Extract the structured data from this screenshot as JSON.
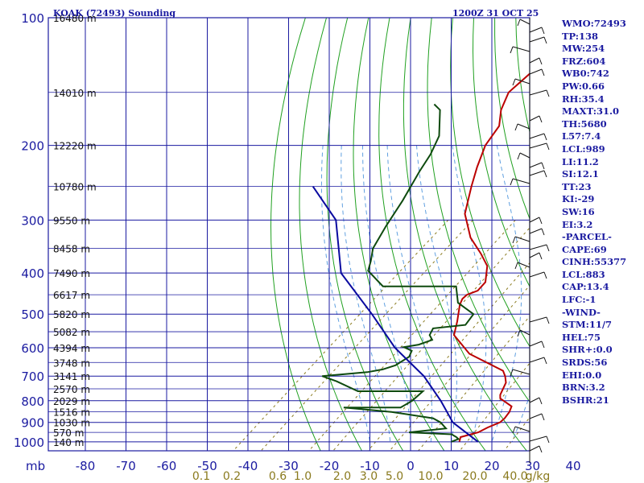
{
  "header": {
    "station": "KOAK (72493) Sounding",
    "time": "1200Z 31 OCT 25"
  },
  "chart_data": {
    "type": "line",
    "title": "KOAK (72493) Sounding",
    "subtitle": "1200Z 31 OCT 25",
    "xunit_label": "mb",
    "temperature_ticks": [
      "-80",
      "-70",
      "-60",
      "-50",
      "-40",
      "-30",
      "-20",
      "-10",
      "0",
      "10",
      "20",
      "30",
      "40"
    ],
    "pressure_ticks": [
      "100",
      "200",
      "300",
      "400",
      "500",
      "600",
      "700",
      "800",
      "900",
      "1000"
    ],
    "height_labels": [
      {
        "p": 100,
        "text": "16480 m"
      },
      {
        "p": 150,
        "text": "14010 m"
      },
      {
        "p": 200,
        "text": "12220 m"
      },
      {
        "p": 250,
        "text": "10780 m"
      },
      {
        "p": 300,
        "text": "9550 m"
      },
      {
        "p": 350,
        "text": "8458 m"
      },
      {
        "p": 400,
        "text": "7490 m"
      },
      {
        "p": 450,
        "text": "6617 m"
      },
      {
        "p": 500,
        "text": "5820 m"
      },
      {
        "p": 550,
        "text": "5082 m"
      },
      {
        "p": 600,
        "text": "4394 m"
      },
      {
        "p": 650,
        "text": "3748 m"
      },
      {
        "p": 700,
        "text": "3141 m"
      },
      {
        "p": 750,
        "text": "2570 m"
      },
      {
        "p": 800,
        "text": "2029 m"
      },
      {
        "p": 850,
        "text": "1516 m"
      },
      {
        "p": 900,
        "text": "1030 m"
      },
      {
        "p": 950,
        "text": "570 m"
      },
      {
        "p": 1000,
        "text": "140 m"
      }
    ],
    "mixing_ratio_labels": [
      "0.1",
      "0.2",
      "0.6",
      "1.0",
      "2.0",
      "3.0",
      "5.0",
      "10.0",
      "20.0",
      "40.0",
      "g/kg"
    ],
    "series": [
      {
        "name": "Temperature",
        "color": "#bb0000",
        "points": [
          [
            12,
            1000
          ],
          [
            11,
            975
          ],
          [
            14,
            950
          ],
          [
            15,
            925
          ],
          [
            16.6,
            900
          ],
          [
            16.6,
            880
          ],
          [
            16,
            850
          ],
          [
            15,
            825
          ],
          [
            10,
            790
          ],
          [
            9,
            775
          ],
          [
            7,
            725
          ],
          [
            5,
            700
          ],
          [
            3,
            680
          ],
          [
            -10,
            620
          ],
          [
            -19,
            560
          ],
          [
            -22,
            520
          ],
          [
            -26,
            475
          ],
          [
            -27,
            460
          ],
          [
            -27,
            450
          ],
          [
            -25.5,
            440
          ],
          [
            -26,
            420
          ],
          [
            -30,
            385
          ],
          [
            -35,
            360
          ],
          [
            -42,
            330
          ],
          [
            -50,
            290
          ],
          [
            -56,
            250
          ],
          [
            -60,
            225
          ],
          [
            -64,
            200
          ],
          [
            -66,
            180
          ],
          [
            -70,
            165
          ],
          [
            -73,
            150
          ],
          [
            -73,
            100
          ]
        ]
      },
      {
        "name": "Dewpoint",
        "color": "#0e4a0e",
        "points": [
          [
            10,
            1000
          ],
          [
            11,
            985
          ],
          [
            10,
            975
          ],
          [
            8,
            960
          ],
          [
            -3,
            950
          ],
          [
            5,
            930
          ],
          [
            2,
            900
          ],
          [
            -1,
            880
          ],
          [
            -13,
            850
          ],
          [
            -26,
            830
          ],
          [
            -12,
            830
          ],
          [
            -11,
            800
          ],
          [
            -11,
            760
          ],
          [
            -27,
            760
          ],
          [
            -35,
            720
          ],
          [
            -40,
            700
          ],
          [
            -30,
            685
          ],
          [
            -27,
            675
          ],
          [
            -25,
            660
          ],
          [
            -24,
            630
          ],
          [
            -25,
            610
          ],
          [
            -28,
            598
          ],
          [
            -25,
            590
          ],
          [
            -23,
            575
          ],
          [
            -25,
            560
          ],
          [
            -26,
            540
          ],
          [
            -19,
            530
          ],
          [
            -20,
            500
          ],
          [
            -27,
            470
          ],
          [
            -32,
            430
          ],
          [
            -50,
            430
          ],
          [
            -58,
            395
          ],
          [
            -60,
            375
          ],
          [
            -63,
            350
          ],
          [
            -66,
            310
          ],
          [
            -69,
            270
          ],
          [
            -73,
            230
          ],
          [
            -75,
            210
          ],
          [
            -78,
            190
          ],
          [
            -85,
            165
          ],
          [
            -88,
            160
          ]
        ]
      },
      {
        "name": "Parcel",
        "color": "#0a0aa0",
        "points": [
          [
            16.6,
            1000
          ],
          [
            5,
            900
          ],
          [
            -4,
            800
          ],
          [
            -15,
            700
          ],
          [
            -30,
            600
          ],
          [
            -45,
            500
          ],
          [
            -64,
            400
          ],
          [
            -80,
            300
          ],
          [
            -95,
            250
          ]
        ]
      }
    ],
    "indices": [
      "WMO:72493",
      "TP:138",
      "MW:254",
      "FRZ:604",
      "WB0:742",
      "PW:0.66",
      "RH:35.4",
      "MAXT:31.0",
      "TH:5680",
      "L57:7.4",
      "LCL:989",
      "LI:11.2",
      "SI:12.1",
      "TT:23",
      "KI:-29",
      "SW:16",
      "EI:3.2",
      "-PARCEL-",
      "CAPE:69",
      "CINH:55377",
      "LCL:883",
      "CAP:13.4",
      "LFC:-1",
      "-WIND-",
      "STM:11/7",
      "HEL:75",
      "SHR+:0.0",
      "SRDS:56",
      "EHI:0.0",
      "BRN:3.2",
      "BSHR:21"
    ],
    "colors": {
      "grid": "#1a1aa0",
      "dry_adiabat": "#20a020",
      "moist_adiabat": "#60a0e0",
      "mixing_ratio": "#8a7a1e",
      "wind_barb": "#111111"
    }
  }
}
